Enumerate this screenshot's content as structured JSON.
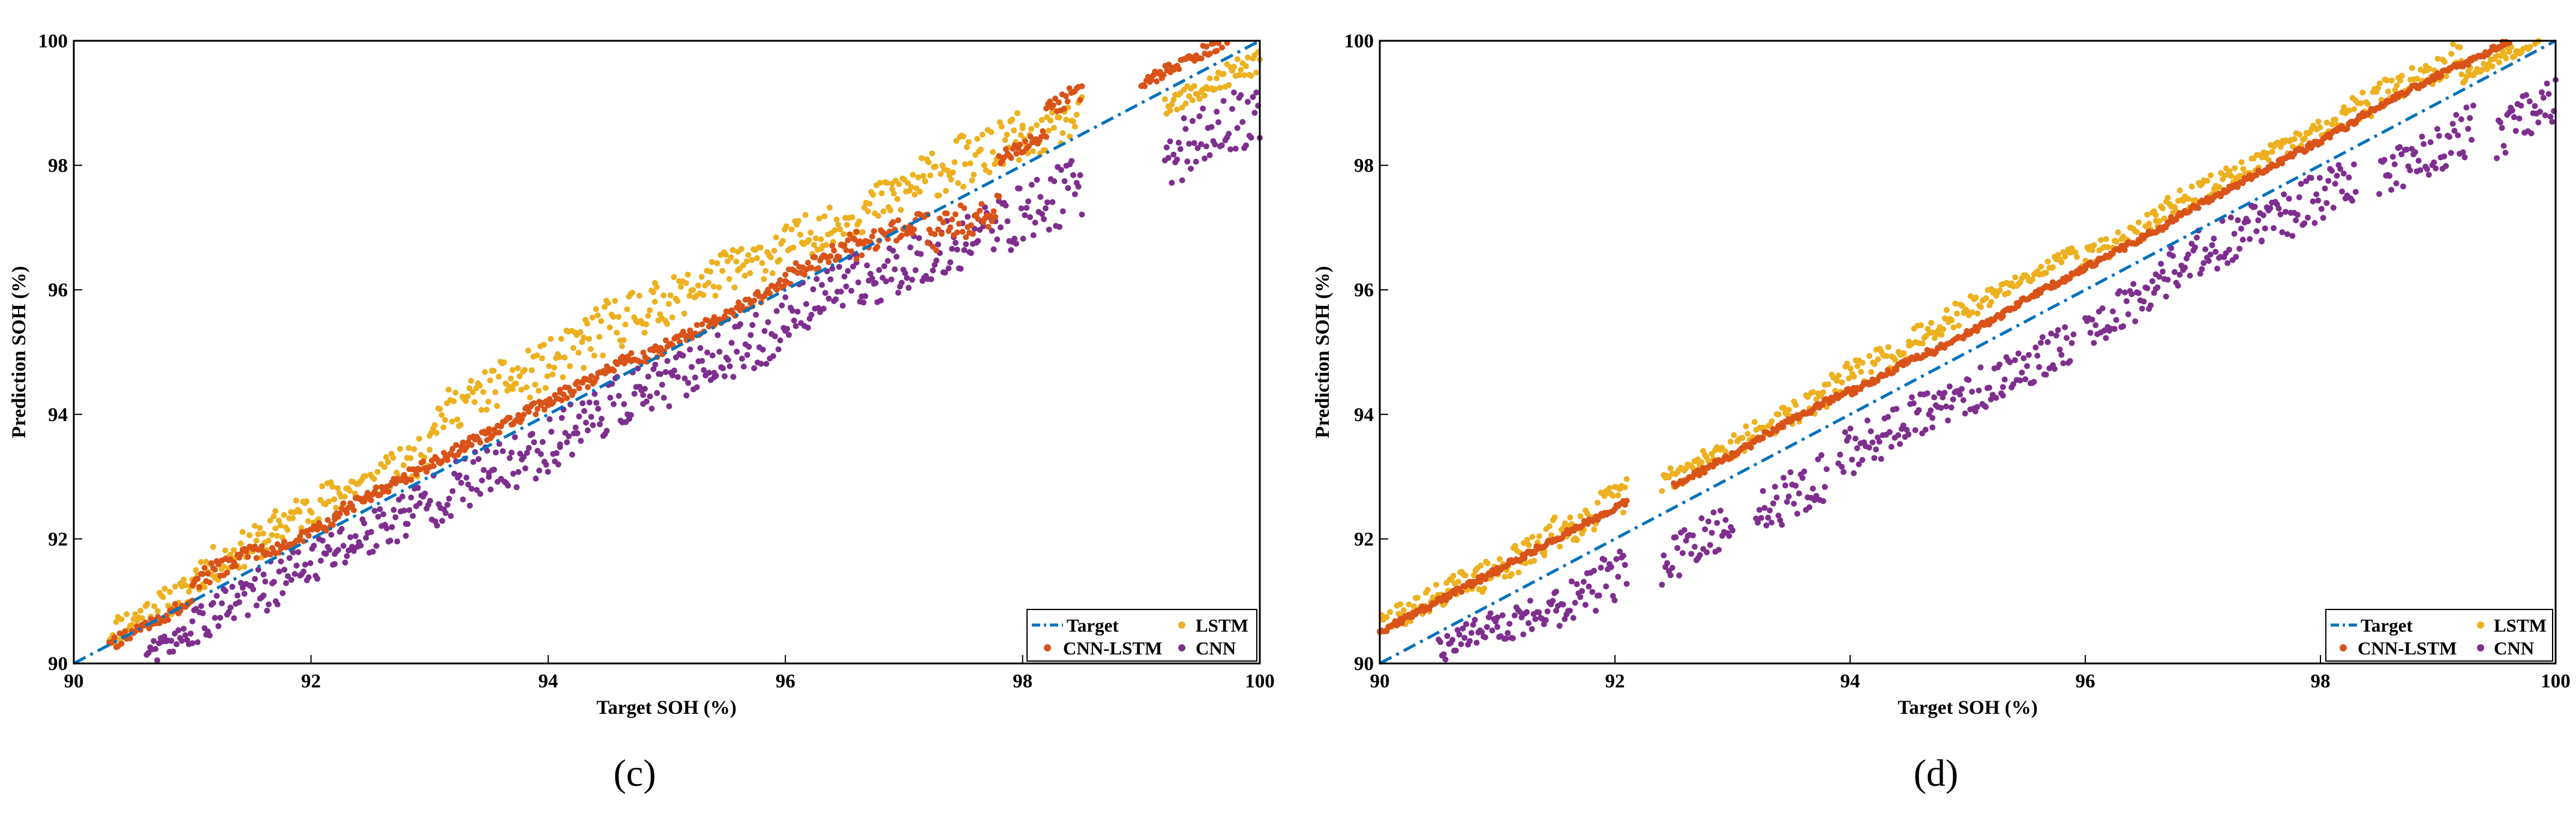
{
  "colors": {
    "target": "#0072BD",
    "lstm": "#EDB120",
    "cnn_lstm": "#D95319",
    "cnn": "#7E2F8E"
  },
  "chart_data": [
    {
      "type": "scatter",
      "panel_label": "(c)",
      "xlabel": "Target SOH (%)",
      "ylabel": "Prediction SOH (%)",
      "xlim": [
        90,
        100
      ],
      "ylim": [
        90,
        100
      ],
      "xticks": [
        90,
        92,
        94,
        96,
        98,
        100
      ],
      "yticks": [
        90,
        92,
        94,
        96,
        98,
        100
      ],
      "legend": [
        "Target",
        "LSTM",
        "CNN-LSTM",
        "CNN"
      ],
      "legend_position": "bottom-right",
      "series": [
        {
          "name": "Target",
          "kind": "line",
          "x": [
            90,
            100
          ],
          "y": [
            90,
            100
          ]
        },
        {
          "name": "LSTM",
          "kind": "scatter",
          "segments": [
            [
              90.3,
              91.0,
              90.5,
              0.25
            ],
            [
              91.0,
              91.7,
              91.4,
              0.3
            ],
            [
              91.7,
              92.4,
              92.2,
              0.3
            ],
            [
              92.4,
              93.0,
              92.8,
              0.3
            ],
            [
              93.0,
              93.7,
              93.9,
              0.35
            ],
            [
              93.7,
              94.3,
              94.5,
              0.4
            ],
            [
              94.3,
              94.9,
              95.2,
              0.45
            ],
            [
              94.9,
              95.6,
              95.7,
              0.35
            ],
            [
              95.6,
              96.3,
              96.3,
              0.35
            ],
            [
              96.3,
              96.9,
              96.9,
              0.35
            ],
            [
              96.9,
              97.5,
              97.5,
              0.4
            ],
            [
              97.5,
              98.0,
              98.0,
              0.4
            ],
            [
              98.0,
              98.5,
              98.3,
              0.3
            ],
            [
              99.2,
              100.0,
              98.9,
              0.2
            ]
          ]
        },
        {
          "name": "CNN-LSTM",
          "kind": "scatter",
          "segments": [
            [
              90.3,
              91.0,
              90.3,
              0.1
            ],
            [
              91.0,
              91.6,
              91.3,
              0.15
            ],
            [
              91.6,
              92.2,
              91.7,
              0.1
            ],
            [
              92.2,
              92.8,
              92.4,
              0.1
            ],
            [
              92.8,
              93.5,
              93.0,
              0.1
            ],
            [
              93.5,
              94.1,
              93.7,
              0.1
            ],
            [
              94.1,
              94.7,
              94.3,
              0.1
            ],
            [
              94.7,
              95.4,
              94.8,
              0.1
            ],
            [
              95.4,
              96.0,
              95.5,
              0.1
            ],
            [
              96.0,
              96.6,
              96.2,
              0.15
            ],
            [
              96.6,
              97.2,
              96.6,
              0.2
            ],
            [
              97.2,
              97.8,
              96.8,
              0.3
            ],
            [
              97.8,
              98.2,
              98.1,
              0.1
            ],
            [
              98.2,
              98.5,
              98.9,
              0.15
            ],
            [
              99.0,
              100.0,
              99.3,
              0.1
            ]
          ]
        },
        {
          "name": "CNN",
          "kind": "scatter",
          "segments": [
            [
              90.6,
              91.0,
              90.1,
              0.2
            ],
            [
              91.0,
              91.6,
              90.6,
              0.35
            ],
            [
              91.6,
              92.2,
              91.2,
              0.4
            ],
            [
              92.2,
              92.8,
              91.8,
              0.4
            ],
            [
              92.8,
              93.5,
              92.4,
              0.45
            ],
            [
              93.5,
              94.1,
              93.0,
              0.45
            ],
            [
              94.1,
              94.8,
              93.7,
              0.45
            ],
            [
              94.8,
              95.4,
              94.3,
              0.4
            ],
            [
              95.4,
              96.0,
              94.8,
              0.45
            ],
            [
              96.0,
              96.6,
              95.6,
              0.4
            ],
            [
              96.6,
              97.2,
              96.0,
              0.45
            ],
            [
              97.2,
              97.8,
              96.5,
              0.45
            ],
            [
              97.8,
              98.5,
              97.0,
              0.5
            ],
            [
              99.2,
              100.0,
              98.1,
              0.5
            ]
          ]
        }
      ]
    },
    {
      "type": "scatter",
      "panel_label": "(d)",
      "xlabel": "Target SOH (%)",
      "ylabel": "Prediction SOH (%)",
      "xlim": [
        90,
        100
      ],
      "ylim": [
        90,
        100
      ],
      "xticks": [
        90,
        92,
        94,
        96,
        98,
        100
      ],
      "yticks": [
        90,
        92,
        94,
        96,
        98,
        100
      ],
      "legend": [
        "Target",
        "LSTM",
        "CNN-LSTM",
        "CNN"
      ],
      "legend_position": "bottom-right",
      "series": [
        {
          "name": "Target",
          "kind": "line",
          "x": [
            90,
            100
          ],
          "y": [
            90,
            100
          ]
        },
        {
          "name": "LSTM",
          "kind": "scatter",
          "segments": [
            [
              90.0,
              90.8,
              90.6,
              0.2
            ],
            [
              90.8,
              91.4,
              91.3,
              0.25
            ],
            [
              91.4,
              92.1,
              92.0,
              0.3
            ],
            [
              92.4,
              93.1,
              92.9,
              0.2
            ],
            [
              93.1,
              93.8,
              93.6,
              0.2
            ],
            [
              93.8,
              94.5,
              94.4,
              0.25
            ],
            [
              94.5,
              95.2,
              95.2,
              0.2
            ],
            [
              95.2,
              95.9,
              95.9,
              0.1
            ],
            [
              95.9,
              96.6,
              96.4,
              0.2
            ],
            [
              96.6,
              97.3,
              97.2,
              0.2
            ],
            [
              97.3,
              98.2,
              97.9,
              0.15
            ],
            [
              98.2,
              99.2,
              98.8,
              0.25
            ],
            [
              99.2,
              100.0,
              99.4,
              0.1
            ]
          ]
        },
        {
          "name": "CNN-LSTM",
          "kind": "scatter",
          "segments": [
            [
              90.0,
              91.0,
              90.5,
              0.05
            ],
            [
              91.0,
              92.1,
              91.5,
              0.05
            ],
            [
              92.5,
              93.2,
              92.85,
              0.05
            ],
            [
              93.2,
              94.0,
              93.6,
              0.05
            ],
            [
              94.0,
              94.7,
              94.35,
              0.05
            ],
            [
              94.7,
              95.3,
              95.0,
              0.05
            ],
            [
              95.3,
              96.0,
              95.65,
              0.05
            ],
            [
              96.0,
              96.7,
              96.35,
              0.05
            ],
            [
              96.7,
              97.5,
              97.1,
              0.05
            ],
            [
              97.5,
              98.3,
              97.9,
              0.05
            ],
            [
              98.3,
              99.2,
              98.75,
              0.05
            ],
            [
              99.2,
              100.0,
              99.6,
              0.05
            ]
          ]
        },
        {
          "name": "CNN",
          "kind": "scatter",
          "segments": [
            [
              90.5,
              91.0,
              90.2,
              0.2
            ],
            [
              91.0,
              91.5,
              90.5,
              0.3
            ],
            [
              91.5,
              92.1,
              90.9,
              0.4
            ],
            [
              92.4,
              93.0,
              91.6,
              0.4
            ],
            [
              93.2,
              93.8,
              92.4,
              0.4
            ],
            [
              93.9,
              94.7,
              93.3,
              0.4
            ],
            [
              94.7,
              95.3,
              94.0,
              0.35
            ],
            [
              95.3,
              95.9,
              94.6,
              0.35
            ],
            [
              96.0,
              96.6,
              95.4,
              0.35
            ],
            [
              96.6,
              97.5,
              96.2,
              0.4
            ],
            [
              97.5,
              98.3,
              97.0,
              0.4
            ],
            [
              98.5,
              99.3,
              97.8,
              0.4
            ],
            [
              99.5,
              100.0,
              98.5,
              0.4
            ]
          ]
        }
      ]
    }
  ]
}
